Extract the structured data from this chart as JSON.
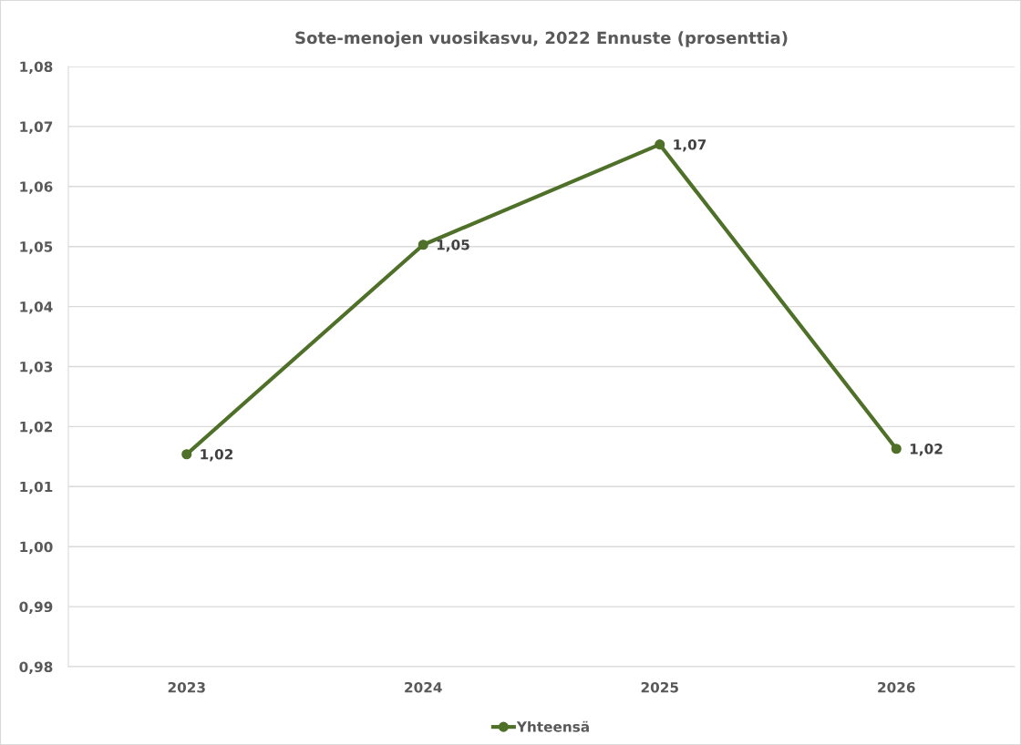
{
  "chart_data": {
    "type": "line",
    "title": "Sote-menojen vuosikasvu, 2022 Ennuste (prosenttia)",
    "categories": [
      "2023",
      "2024",
      "2025",
      "2026"
    ],
    "series": [
      {
        "name": "Yhteensä",
        "color": "#4f7028",
        "values": [
          1.0154,
          1.0503,
          1.067,
          1.0163
        ],
        "value_labels": [
          "1,02",
          "1,05",
          "1,07",
          "1,02"
        ]
      }
    ],
    "ylim": [
      0.98,
      1.08
    ],
    "yticks": [
      {
        "value": 0.98,
        "label": "0,98"
      },
      {
        "value": 0.99,
        "label": "0,99"
      },
      {
        "value": 1.0,
        "label": "1,00"
      },
      {
        "value": 1.01,
        "label": "1,01"
      },
      {
        "value": 1.02,
        "label": "1,02"
      },
      {
        "value": 1.03,
        "label": "1,03"
      },
      {
        "value": 1.04,
        "label": "1,04"
      },
      {
        "value": 1.05,
        "label": "1,05"
      },
      {
        "value": 1.06,
        "label": "1,06"
      },
      {
        "value": 1.07,
        "label": "1,07"
      },
      {
        "value": 1.08,
        "label": "1,08"
      }
    ],
    "grid": "y",
    "legend": "bottom",
    "marker": "circle",
    "line_style": "solid"
  }
}
